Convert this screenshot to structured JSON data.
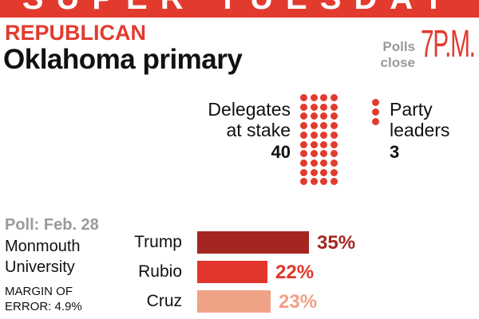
{
  "banner": "SUPER TUESDAY",
  "party": "REPUBLICAN",
  "race": "Oklahoma primary",
  "polls": {
    "label_line1": "Polls",
    "label_line2": "close",
    "time": "7P.M."
  },
  "delegates": {
    "label_line1": "Delegates",
    "label_line2": "at stake",
    "count": "40"
  },
  "party_leaders": {
    "label_line1": "Party",
    "label_line2": "leaders",
    "count": "3"
  },
  "poll_info": {
    "date": "Poll: Feb. 28",
    "pollster_line1": "Monmouth",
    "pollster_line2": "University",
    "moe_line1": "MARGIN OF",
    "moe_line2": "ERROR: 4.9%"
  },
  "colors": {
    "accent": "#e23b2e",
    "trump": "#a52620",
    "rubio": "#e2352b",
    "cruz": "#f0a286",
    "muted": "#9a9a9a"
  },
  "chart_data": {
    "type": "bar",
    "orientation": "horizontal",
    "categories": [
      "Trump",
      "Rubio",
      "Cruz"
    ],
    "values": [
      35,
      22,
      23
    ],
    "value_labels": [
      "35%",
      "22%",
      "23%"
    ],
    "xlim": [
      0,
      35
    ]
  }
}
